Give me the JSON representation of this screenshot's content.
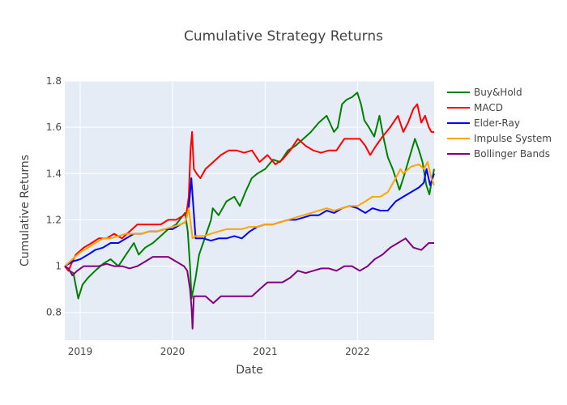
{
  "chart_data": {
    "type": "line",
    "title": "Cumulative Strategy Returns",
    "xlabel": "Date",
    "ylabel": "Cumulative Returns",
    "xlim": [
      "2018-11-01",
      "2022-10-31"
    ],
    "ylim": [
      0.68,
      1.8
    ],
    "x_ticks": [
      "2019-01-01",
      "2020-01-01",
      "2021-01-01",
      "2022-01-01"
    ],
    "x_tick_labels": [
      "2019",
      "2020",
      "2021",
      "2022"
    ],
    "y_ticks": [
      0.8,
      1,
      1.2,
      1.4,
      1.6,
      1.8
    ],
    "y_tick_labels": [
      "0.8",
      "1",
      "1.2",
      "1.4",
      "1.6",
      "1.8"
    ],
    "grid": true,
    "legend_position": "top-right",
    "series": [
      {
        "name": "Buy&Hold",
        "color": "#008000",
        "x": [
          "2018-11-01",
          "2018-11-20",
          "2018-12-05",
          "2018-12-24",
          "2019-01-10",
          "2019-02-01",
          "2019-03-01",
          "2019-04-01",
          "2019-05-01",
          "2019-06-01",
          "2019-07-01",
          "2019-08-01",
          "2019-08-20",
          "2019-09-15",
          "2019-10-15",
          "2019-11-15",
          "2019-12-15",
          "2020-01-15",
          "2020-02-19",
          "2020-03-01",
          "2020-03-10",
          "2020-03-16",
          "2020-03-23",
          "2020-04-01",
          "2020-04-15",
          "2020-05-01",
          "2020-06-01",
          "2020-06-08",
          "2020-07-01",
          "2020-08-01",
          "2020-09-01",
          "2020-09-23",
          "2020-10-15",
          "2020-11-09",
          "2020-12-01",
          "2021-01-01",
          "2021-02-01",
          "2021-03-01",
          "2021-04-01",
          "2021-05-01",
          "2021-06-01",
          "2021-07-01",
          "2021-08-01",
          "2021-09-01",
          "2021-09-30",
          "2021-10-15",
          "2021-11-01",
          "2021-11-20",
          "2021-12-10",
          "2021-12-31",
          "2022-01-15",
          "2022-01-28",
          "2022-02-15",
          "2022-03-08",
          "2022-03-29",
          "2022-04-15",
          "2022-05-01",
          "2022-05-20",
          "2022-06-16",
          "2022-07-01",
          "2022-07-20",
          "2022-08-16",
          "2022-09-01",
          "2022-09-15",
          "2022-09-30",
          "2022-10-12",
          "2022-10-20",
          "2022-10-31"
        ],
        "values": [
          1.0,
          0.98,
          0.97,
          0.86,
          0.92,
          0.95,
          0.98,
          1.01,
          1.03,
          1.0,
          1.05,
          1.1,
          1.05,
          1.08,
          1.1,
          1.13,
          1.16,
          1.18,
          1.23,
          1.15,
          1.0,
          0.86,
          0.9,
          0.95,
          1.05,
          1.1,
          1.2,
          1.25,
          1.22,
          1.28,
          1.3,
          1.26,
          1.32,
          1.38,
          1.4,
          1.42,
          1.46,
          1.45,
          1.5,
          1.52,
          1.55,
          1.58,
          1.62,
          1.65,
          1.58,
          1.6,
          1.7,
          1.72,
          1.73,
          1.75,
          1.7,
          1.63,
          1.6,
          1.56,
          1.65,
          1.55,
          1.47,
          1.42,
          1.33,
          1.38,
          1.45,
          1.55,
          1.5,
          1.45,
          1.35,
          1.31,
          1.36,
          1.42
        ]
      },
      {
        "name": "MACD",
        "color": "#ff0000",
        "x": [
          "2018-11-01",
          "2018-11-15",
          "2018-12-01",
          "2018-12-15",
          "2019-01-15",
          "2019-02-15",
          "2019-03-15",
          "2019-04-15",
          "2019-05-15",
          "2019-06-15",
          "2019-07-15",
          "2019-08-15",
          "2019-09-15",
          "2019-10-15",
          "2019-11-15",
          "2019-12-15",
          "2020-01-15",
          "2020-02-15",
          "2020-02-25",
          "2020-03-05",
          "2020-03-12",
          "2020-03-18",
          "2020-03-25",
          "2020-04-05",
          "2020-04-20",
          "2020-05-10",
          "2020-06-10",
          "2020-07-10",
          "2020-08-10",
          "2020-09-10",
          "2020-10-10",
          "2020-11-10",
          "2020-12-10",
          "2021-01-10",
          "2021-02-10",
          "2021-03-10",
          "2021-04-10",
          "2021-05-10",
          "2021-06-10",
          "2021-07-10",
          "2021-08-10",
          "2021-09-10",
          "2021-10-10",
          "2021-11-10",
          "2021-12-10",
          "2022-01-10",
          "2022-02-01",
          "2022-02-20",
          "2022-03-15",
          "2022-04-10",
          "2022-05-10",
          "2022-06-10",
          "2022-07-01",
          "2022-07-20",
          "2022-08-10",
          "2022-08-25",
          "2022-09-10",
          "2022-09-25",
          "2022-10-10",
          "2022-10-20",
          "2022-10-31"
        ],
        "values": [
          1.0,
          0.98,
          1.02,
          1.05,
          1.08,
          1.1,
          1.12,
          1.12,
          1.14,
          1.12,
          1.15,
          1.18,
          1.18,
          1.18,
          1.18,
          1.2,
          1.2,
          1.22,
          1.23,
          1.3,
          1.5,
          1.58,
          1.42,
          1.4,
          1.38,
          1.42,
          1.45,
          1.48,
          1.5,
          1.5,
          1.49,
          1.5,
          1.45,
          1.48,
          1.44,
          1.46,
          1.5,
          1.55,
          1.52,
          1.5,
          1.49,
          1.5,
          1.5,
          1.55,
          1.55,
          1.55,
          1.52,
          1.48,
          1.52,
          1.56,
          1.6,
          1.65,
          1.58,
          1.62,
          1.68,
          1.7,
          1.62,
          1.65,
          1.6,
          1.58,
          1.58
        ]
      },
      {
        "name": "Elder-Ray",
        "color": "#0000ff",
        "x": [
          "2018-11-01",
          "2018-12-01",
          "2019-01-01",
          "2019-02-01",
          "2019-03-01",
          "2019-04-01",
          "2019-05-01",
          "2019-06-01",
          "2019-07-01",
          "2019-08-01",
          "2019-09-01",
          "2019-10-01",
          "2019-11-01",
          "2019-12-01",
          "2020-01-01",
          "2020-02-01",
          "2020-02-20",
          "2020-03-05",
          "2020-03-15",
          "2020-04-01",
          "2020-05-01",
          "2020-06-01",
          "2020-07-01",
          "2020-08-01",
          "2020-09-01",
          "2020-10-01",
          "2020-11-01",
          "2020-12-01",
          "2021-01-01",
          "2021-02-01",
          "2021-03-01",
          "2021-04-01",
          "2021-05-01",
          "2021-06-01",
          "2021-07-01",
          "2021-08-01",
          "2021-09-01",
          "2021-10-01",
          "2021-11-01",
          "2021-12-01",
          "2022-01-01",
          "2022-02-01",
          "2022-03-01",
          "2022-04-01",
          "2022-05-01",
          "2022-06-01",
          "2022-07-01",
          "2022-08-01",
          "2022-09-01",
          "2022-09-20",
          "2022-10-01",
          "2022-10-15",
          "2022-10-31"
        ],
        "values": [
          1.0,
          1.02,
          1.03,
          1.05,
          1.07,
          1.08,
          1.1,
          1.1,
          1.12,
          1.14,
          1.14,
          1.15,
          1.15,
          1.16,
          1.16,
          1.18,
          1.19,
          1.25,
          1.38,
          1.12,
          1.12,
          1.11,
          1.12,
          1.12,
          1.13,
          1.12,
          1.15,
          1.17,
          1.18,
          1.18,
          1.19,
          1.2,
          1.2,
          1.21,
          1.22,
          1.22,
          1.24,
          1.23,
          1.25,
          1.26,
          1.25,
          1.23,
          1.25,
          1.24,
          1.24,
          1.28,
          1.3,
          1.32,
          1.34,
          1.36,
          1.42,
          1.35,
          1.4
        ]
      },
      {
        "name": "Impulse System",
        "color": "#ffa500",
        "x": [
          "2018-11-01",
          "2018-12-01",
          "2019-01-01",
          "2019-02-01",
          "2019-03-01",
          "2019-04-01",
          "2019-05-01",
          "2019-06-01",
          "2019-07-01",
          "2019-08-01",
          "2019-09-01",
          "2019-10-01",
          "2019-11-01",
          "2019-12-01",
          "2020-01-01",
          "2020-02-01",
          "2020-02-20",
          "2020-03-05",
          "2020-03-20",
          "2020-04-01",
          "2020-05-01",
          "2020-06-01",
          "2020-07-01",
          "2020-08-01",
          "2020-09-01",
          "2020-10-01",
          "2020-11-01",
          "2020-12-01",
          "2021-01-01",
          "2021-02-01",
          "2021-03-01",
          "2021-04-01",
          "2021-05-01",
          "2021-06-01",
          "2021-07-01",
          "2021-08-01",
          "2021-09-01",
          "2021-10-01",
          "2021-11-01",
          "2021-12-01",
          "2022-01-01",
          "2022-02-01",
          "2022-03-01",
          "2022-04-01",
          "2022-05-01",
          "2022-06-01",
          "2022-06-20",
          "2022-07-01",
          "2022-08-01",
          "2022-09-01",
          "2022-09-20",
          "2022-10-05",
          "2022-10-20",
          "2022-10-31"
        ],
        "values": [
          1.0,
          1.03,
          1.06,
          1.08,
          1.1,
          1.12,
          1.12,
          1.13,
          1.14,
          1.14,
          1.14,
          1.15,
          1.15,
          1.16,
          1.17,
          1.18,
          1.19,
          1.25,
          1.12,
          1.13,
          1.13,
          1.14,
          1.15,
          1.16,
          1.16,
          1.16,
          1.17,
          1.17,
          1.18,
          1.18,
          1.19,
          1.2,
          1.21,
          1.22,
          1.23,
          1.24,
          1.25,
          1.24,
          1.25,
          1.26,
          1.26,
          1.28,
          1.3,
          1.3,
          1.32,
          1.38,
          1.42,
          1.4,
          1.43,
          1.44,
          1.42,
          1.45,
          1.38,
          1.35
        ]
      },
      {
        "name": "Bollinger Bands",
        "color": "#800080",
        "x": [
          "2018-11-01",
          "2018-11-15",
          "2018-12-01",
          "2018-12-20",
          "2019-01-15",
          "2019-02-15",
          "2019-03-15",
          "2019-04-15",
          "2019-05-15",
          "2019-06-15",
          "2019-07-15",
          "2019-08-15",
          "2019-09-15",
          "2019-10-15",
          "2019-11-15",
          "2019-12-15",
          "2020-01-15",
          "2020-02-15",
          "2020-02-28",
          "2020-03-10",
          "2020-03-16",
          "2020-03-20",
          "2020-03-25",
          "2020-04-10",
          "2020-05-10",
          "2020-06-10",
          "2020-07-10",
          "2020-08-10",
          "2020-09-10",
          "2020-10-10",
          "2020-11-10",
          "2020-12-10",
          "2021-01-10",
          "2021-02-10",
          "2021-03-10",
          "2021-04-10",
          "2021-05-10",
          "2021-06-10",
          "2021-07-10",
          "2021-08-10",
          "2021-09-10",
          "2021-10-10",
          "2021-11-10",
          "2021-12-10",
          "2022-01-10",
          "2022-02-10",
          "2022-03-10",
          "2022-04-10",
          "2022-05-10",
          "2022-06-10",
          "2022-07-10",
          "2022-08-10",
          "2022-09-10",
          "2022-10-10",
          "2022-10-31"
        ],
        "values": [
          1.0,
          0.99,
          0.96,
          0.98,
          1.0,
          1.0,
          1.0,
          1.01,
          1.0,
          1.0,
          0.99,
          1.0,
          1.02,
          1.04,
          1.04,
          1.04,
          1.02,
          1.0,
          0.98,
          0.9,
          0.82,
          0.73,
          0.87,
          0.87,
          0.87,
          0.84,
          0.87,
          0.87,
          0.87,
          0.87,
          0.87,
          0.9,
          0.93,
          0.93,
          0.93,
          0.95,
          0.98,
          0.97,
          0.98,
          0.99,
          0.99,
          0.98,
          1.0,
          1.0,
          0.98,
          1.0,
          1.03,
          1.05,
          1.08,
          1.1,
          1.12,
          1.08,
          1.07,
          1.1,
          1.1
        ]
      }
    ]
  }
}
